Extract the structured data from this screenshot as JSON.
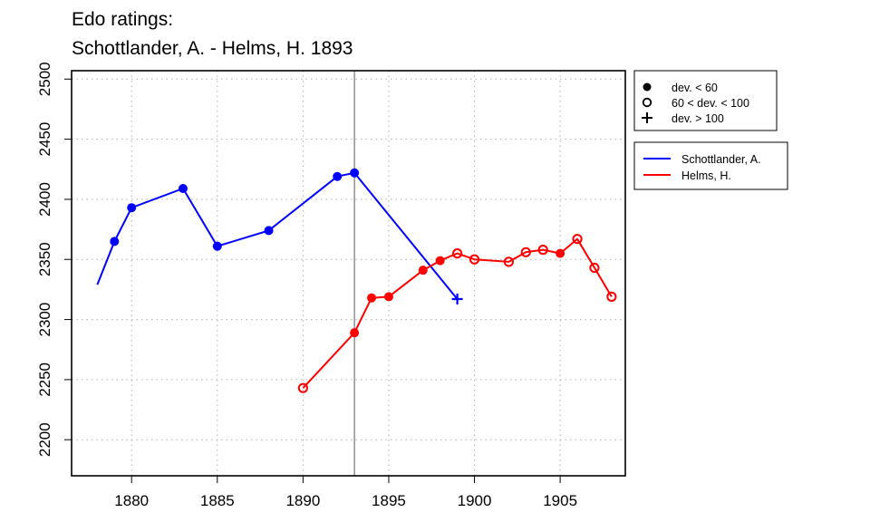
{
  "chart_data": {
    "type": "line",
    "title": "Edo ratings:",
    "subtitle": "Schottlander, A. - Helms, H. 1893",
    "xlabel": "",
    "ylabel": "",
    "xlim": [
      1876.5,
      1908.8
    ],
    "ylim": [
      2170,
      2507
    ],
    "x_ticks": [
      1880,
      1885,
      1890,
      1895,
      1900,
      1905
    ],
    "y_ticks": [
      2200,
      2250,
      2300,
      2350,
      2400,
      2450,
      2500
    ],
    "grid": true,
    "grid_style": "dotted",
    "marker_year": 1893,
    "legend_markers": [
      {
        "label": "dev. < 60",
        "marker": "filled-circle"
      },
      {
        "label": "60 < dev. < 100",
        "marker": "open-circle"
      },
      {
        "label": "dev. > 100",
        "marker": "plus"
      }
    ],
    "series": [
      {
        "name": "Schottlander, A.",
        "color": "#0000ff",
        "points": [
          {
            "x": 1878,
            "y": 2329,
            "m": "none"
          },
          {
            "x": 1879,
            "y": 2365,
            "m": "filled"
          },
          {
            "x": 1880,
            "y": 2393,
            "m": "filled"
          },
          {
            "x": 1883,
            "y": 2409,
            "m": "filled"
          },
          {
            "x": 1885,
            "y": 2361,
            "m": "filled"
          },
          {
            "x": 1888,
            "y": 2374,
            "m": "filled"
          },
          {
            "x": 1892,
            "y": 2419,
            "m": "filled"
          },
          {
            "x": 1893,
            "y": 2422,
            "m": "filled"
          },
          {
            "x": 1899,
            "y": 2317,
            "m": "plus"
          }
        ]
      },
      {
        "name": "Helms, H.",
        "color": "#ff0000",
        "points": [
          {
            "x": 1890,
            "y": 2243,
            "m": "open"
          },
          {
            "x": 1893,
            "y": 2289,
            "m": "filled"
          },
          {
            "x": 1894,
            "y": 2318,
            "m": "filled"
          },
          {
            "x": 1895,
            "y": 2319,
            "m": "filled"
          },
          {
            "x": 1897,
            "y": 2341,
            "m": "filled"
          },
          {
            "x": 1898,
            "y": 2349,
            "m": "filled"
          },
          {
            "x": 1899,
            "y": 2355,
            "m": "open"
          },
          {
            "x": 1900,
            "y": 2350,
            "m": "open"
          },
          {
            "x": 1902,
            "y": 2348,
            "m": "open"
          },
          {
            "x": 1903,
            "y": 2356,
            "m": "open"
          },
          {
            "x": 1904,
            "y": 2358,
            "m": "open"
          },
          {
            "x": 1905,
            "y": 2355,
            "m": "filled"
          },
          {
            "x": 1906,
            "y": 2367,
            "m": "open"
          },
          {
            "x": 1907,
            "y": 2343,
            "m": "open"
          },
          {
            "x": 1908,
            "y": 2319,
            "m": "open"
          }
        ]
      }
    ]
  }
}
